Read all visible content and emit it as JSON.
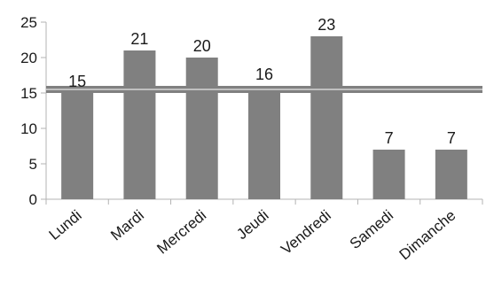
{
  "chart_data": {
    "type": "bar",
    "categories": [
      "Lundi",
      "Mardi",
      "Mercredi",
      "Jeudi",
      "Vendredi",
      "Samedi",
      "Dimanche"
    ],
    "values": [
      15,
      21,
      20,
      16,
      23,
      7,
      7
    ],
    "data_labels": [
      "15",
      "21",
      "20",
      "16",
      "23",
      "7",
      "7"
    ],
    "y_ticks": [
      "0",
      "5",
      "10",
      "15",
      "20",
      "25"
    ],
    "ylim": [
      0,
      25
    ],
    "reference_line": 15.5,
    "grid": false,
    "legend": "none",
    "title": "",
    "xlabel": "",
    "ylabel": "",
    "colors": {
      "bar": "#808080",
      "reference_line": "#808080",
      "axis": "#b3b3b3"
    }
  }
}
